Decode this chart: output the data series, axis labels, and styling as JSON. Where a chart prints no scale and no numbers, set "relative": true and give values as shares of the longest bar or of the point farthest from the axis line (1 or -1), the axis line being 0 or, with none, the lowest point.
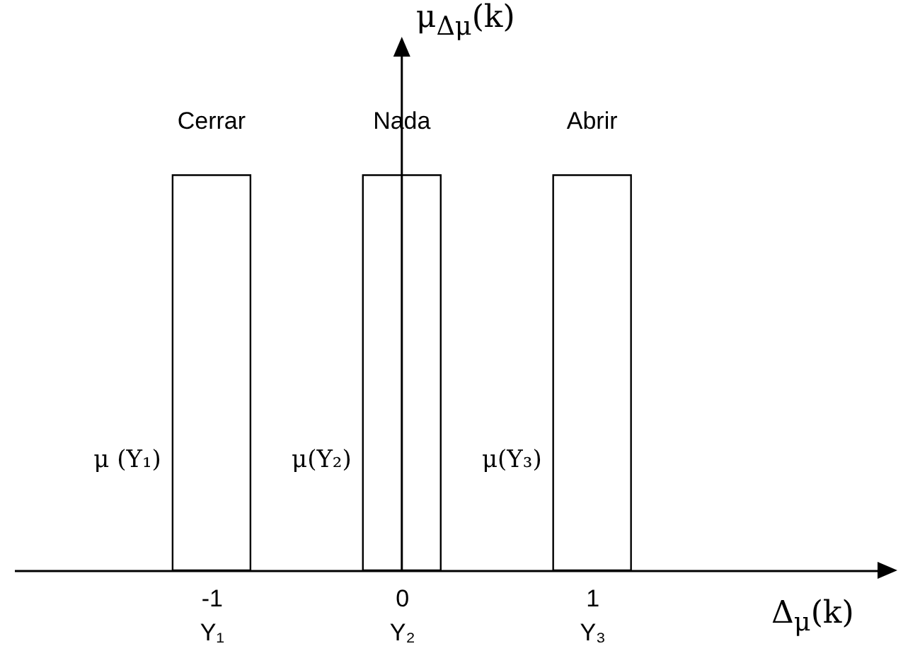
{
  "chart_data": {
    "type": "bar",
    "relative": true,
    "x": [
      -1,
      0,
      1
    ],
    "values": [
      1,
      1,
      1
    ],
    "color": "#000000",
    "xlim": [
      -2,
      2.5
    ],
    "xticks": [
      {
        "value": -1,
        "label": "-1\nY₁"
      },
      {
        "value": 0,
        "label": "0\nY₂"
      },
      {
        "value": 1,
        "label": "1\nY₃"
      }
    ],
    "xlabel": "Δ$_{μ}$(k)",
    "ylabel": "μ$_{Δμ}$(k)",
    "annotations": [
      {
        "text": "Cerrar",
        "x": -1,
        "y": 1
      },
      {
        "text": "Nada",
        "x": 0,
        "y": 1
      },
      {
        "text": "Abrir",
        "x": 1,
        "y": 1
      },
      "μ (Y₁)",
      "μ(Y₂)",
      "μ(Y₃)"
    ]
  }
}
